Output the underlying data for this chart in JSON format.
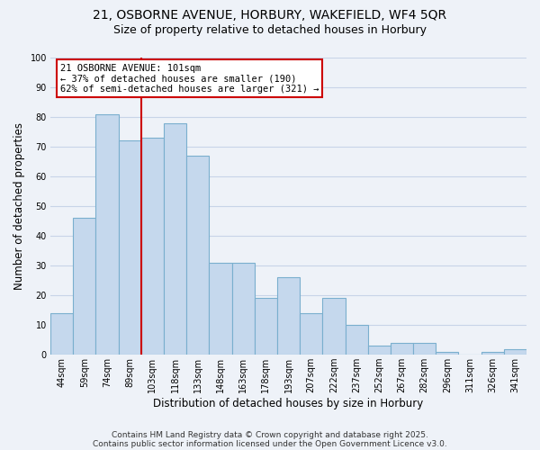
{
  "title": "21, OSBORNE AVENUE, HORBURY, WAKEFIELD, WF4 5QR",
  "subtitle": "Size of property relative to detached houses in Horbury",
  "xlabel": "Distribution of detached houses by size in Horbury",
  "ylabel": "Number of detached properties",
  "bar_labels": [
    "44sqm",
    "59sqm",
    "74sqm",
    "89sqm",
    "103sqm",
    "118sqm",
    "133sqm",
    "148sqm",
    "163sqm",
    "178sqm",
    "193sqm",
    "207sqm",
    "222sqm",
    "237sqm",
    "252sqm",
    "267sqm",
    "282sqm",
    "296sqm",
    "311sqm",
    "326sqm",
    "341sqm"
  ],
  "bar_values": [
    14,
    46,
    81,
    72,
    73,
    78,
    67,
    31,
    31,
    19,
    26,
    14,
    19,
    10,
    3,
    4,
    4,
    1,
    0,
    1,
    2
  ],
  "bar_color": "#c5d8ed",
  "bar_edge_color": "#7aafce",
  "vline_index": 4,
  "vline_color": "#cc0000",
  "annotation_title": "21 OSBORNE AVENUE: 101sqm",
  "annotation_line1": "← 37% of detached houses are smaller (190)",
  "annotation_line2": "62% of semi-detached houses are larger (321) →",
  "annotation_box_color": "#ffffff",
  "annotation_box_edge_color": "#cc0000",
  "ylim": [
    0,
    100
  ],
  "yticks": [
    0,
    10,
    20,
    30,
    40,
    50,
    60,
    70,
    80,
    90,
    100
  ],
  "footnote1": "Contains HM Land Registry data © Crown copyright and database right 2025.",
  "footnote2": "Contains public sector information licensed under the Open Government Licence v3.0.",
  "background_color": "#eef2f8",
  "grid_color": "#c8d4e8",
  "title_fontsize": 10,
  "subtitle_fontsize": 9,
  "tick_label_fontsize": 7,
  "axis_label_fontsize": 8.5,
  "footnote_fontsize": 6.5,
  "annotation_fontsize": 7.5
}
